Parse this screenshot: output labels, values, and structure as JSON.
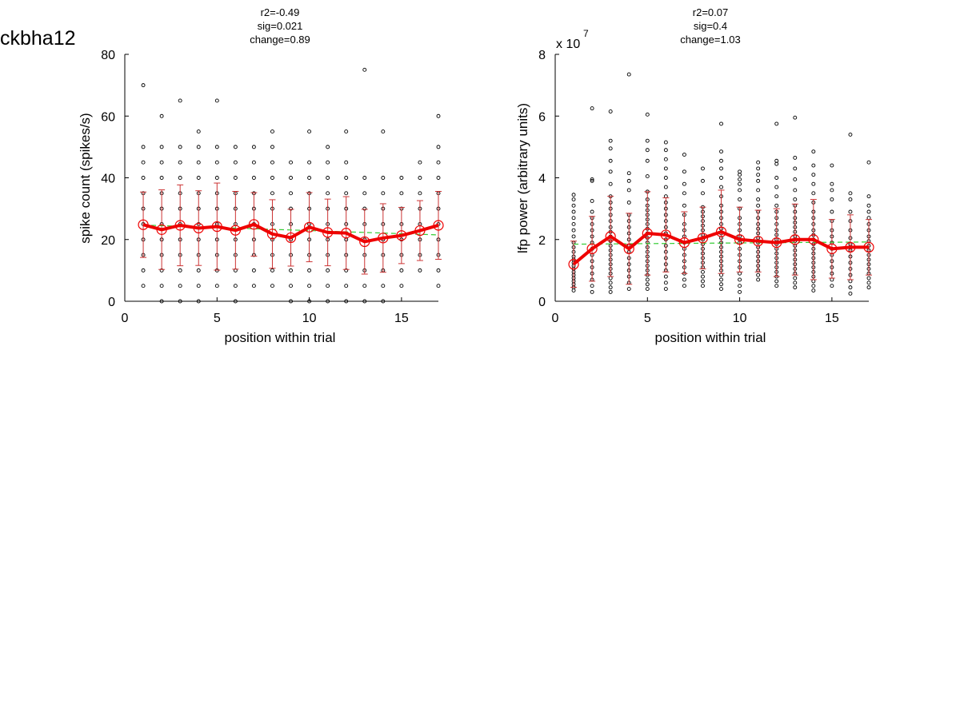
{
  "figure": {
    "title": "ckbha12"
  },
  "chart_data": [
    {
      "type": "scatter",
      "title_lines": [
        "r2=-0.49",
        "sig=0.021",
        "change=0.89"
      ],
      "xlabel": "position within trial",
      "ylabel": "spike count (spikes/s)",
      "xlim": [
        0,
        17
      ],
      "ylim": [
        0,
        80
      ],
      "xticks": [
        0,
        5,
        10,
        15
      ],
      "yticks": [
        0,
        20,
        40,
        60,
        80
      ],
      "multiplier": "",
      "grid": false,
      "colors": {
        "raw": "#000000",
        "mean": "#ee0000",
        "errorbar": "#cc3333",
        "fit": "#33cc33"
      },
      "raw_points": [
        {
          "x": 1,
          "y": [
            5,
            10,
            15,
            20,
            25,
            30,
            35,
            40,
            45,
            50,
            70
          ]
        },
        {
          "x": 2,
          "y": [
            0,
            5,
            10,
            15,
            20,
            25,
            30,
            35,
            40,
            45,
            50,
            60
          ]
        },
        {
          "x": 3,
          "y": [
            0,
            5,
            10,
            15,
            20,
            25,
            30,
            35,
            40,
            45,
            50,
            65
          ]
        },
        {
          "x": 4,
          "y": [
            0,
            5,
            10,
            15,
            20,
            25,
            30,
            35,
            40,
            45,
            50,
            55
          ]
        },
        {
          "x": 5,
          "y": [
            5,
            10,
            15,
            20,
            25,
            30,
            35,
            40,
            45,
            50,
            65
          ]
        },
        {
          "x": 6,
          "y": [
            0,
            5,
            10,
            15,
            20,
            25,
            30,
            35,
            40,
            45,
            50
          ]
        },
        {
          "x": 7,
          "y": [
            5,
            10,
            15,
            20,
            25,
            30,
            35,
            40,
            45,
            50
          ]
        },
        {
          "x": 8,
          "y": [
            5,
            10,
            15,
            20,
            25,
            30,
            35,
            40,
            45,
            50,
            55
          ]
        },
        {
          "x": 9,
          "y": [
            0,
            5,
            10,
            15,
            20,
            25,
            30,
            35,
            40,
            45
          ]
        },
        {
          "x": 10,
          "y": [
            0,
            5,
            10,
            15,
            20,
            25,
            30,
            35,
            40,
            45,
            55
          ]
        },
        {
          "x": 11,
          "y": [
            0,
            5,
            10,
            15,
            20,
            25,
            30,
            35,
            40,
            45,
            50
          ]
        },
        {
          "x": 12,
          "y": [
            0,
            5,
            10,
            15,
            20,
            25,
            30,
            35,
            40,
            45,
            55
          ]
        },
        {
          "x": 13,
          "y": [
            0,
            5,
            10,
            15,
            20,
            25,
            30,
            35,
            40,
            75
          ]
        },
        {
          "x": 14,
          "y": [
            0,
            5,
            10,
            15,
            20,
            25,
            30,
            35,
            40,
            55
          ]
        },
        {
          "x": 15,
          "y": [
            5,
            10,
            15,
            20,
            25,
            30,
            35,
            40
          ]
        },
        {
          "x": 16,
          "y": [
            10,
            15,
            20,
            25,
            30,
            35,
            40,
            45
          ]
        },
        {
          "x": 17,
          "y": [
            5,
            10,
            15,
            20,
            25,
            30,
            35,
            40,
            45,
            50,
            60
          ]
        }
      ],
      "series": [
        {
          "x": [
            1,
            2,
            3,
            4,
            5,
            6,
            7,
            8,
            9,
            10,
            11,
            12,
            13,
            14,
            15,
            16,
            17
          ],
          "mean": [
            24.8,
            23.2,
            24.6,
            23.7,
            24.2,
            23.0,
            24.9,
            21.8,
            20.6,
            24.0,
            22.3,
            22.1,
            19.3,
            20.5,
            21.3,
            22.9,
            24.6
          ],
          "sd": [
            10.6,
            12.9,
            13.1,
            12.1,
            14.1,
            12.6,
            10.3,
            11.1,
            9.2,
            11.2,
            10.8,
            11.8,
            10.5,
            11.1,
            9.1,
            9.7,
            11.0
          ]
        }
      ],
      "fit": {
        "x": [
          1,
          17
        ],
        "y": [
          24.7,
          21.5
        ]
      }
    },
    {
      "type": "scatter",
      "title_lines": [
        "r2=0.07",
        "sig=0.4",
        "change=1.03"
      ],
      "xlabel": "position within trial",
      "ylabel": "lfp power (arbitrary units)",
      "xlim": [
        0,
        17
      ],
      "ylim": [
        0,
        8
      ],
      "xticks": [
        0,
        5,
        10,
        15
      ],
      "yticks": [
        0,
        2,
        4,
        6,
        8
      ],
      "multiplier": "x 10",
      "multiplier_exp": "7",
      "grid": false,
      "colors": {
        "raw": "#000000",
        "mean": "#ee0000",
        "errorbar": "#cc3333",
        "fit": "#33cc33"
      },
      "raw_points": [
        {
          "x": 1,
          "y": [
            0.35,
            0.45,
            0.55,
            0.65,
            0.75,
            0.85,
            0.95,
            1.05,
            1.15,
            1.25,
            1.35,
            1.45,
            1.6,
            1.75,
            1.9,
            2.1,
            2.3,
            2.5,
            2.7,
            2.9,
            3.1,
            3.3,
            3.45
          ]
        },
        {
          "x": 2,
          "y": [
            0.3,
            0.5,
            0.7,
            0.9,
            1.1,
            1.3,
            1.5,
            1.7,
            1.9,
            2.1,
            2.3,
            2.5,
            2.7,
            2.9,
            3.25,
            3.9,
            3.95,
            6.25
          ]
        },
        {
          "x": 3,
          "y": [
            0.3,
            0.45,
            0.6,
            0.75,
            0.9,
            1.05,
            1.2,
            1.35,
            1.5,
            1.65,
            1.8,
            1.95,
            2.1,
            2.25,
            2.4,
            2.6,
            2.8,
            3.0,
            3.2,
            3.4,
            3.8,
            4.2,
            4.55,
            4.95,
            5.2,
            6.15
          ]
        },
        {
          "x": 4,
          "y": [
            0.4,
            0.6,
            0.8,
            1.0,
            1.2,
            1.4,
            1.6,
            1.8,
            2.0,
            2.2,
            2.4,
            2.6,
            2.8,
            3.2,
            3.6,
            3.9,
            4.15,
            7.35
          ]
        },
        {
          "x": 5,
          "y": [
            0.4,
            0.55,
            0.7,
            0.85,
            1.0,
            1.15,
            1.3,
            1.45,
            1.6,
            1.75,
            1.9,
            2.05,
            2.2,
            2.35,
            2.5,
            2.65,
            2.8,
            2.95,
            3.1,
            3.3,
            3.55,
            4.05,
            4.55,
            4.9,
            5.2,
            6.05
          ]
        },
        {
          "x": 6,
          "y": [
            0.4,
            0.6,
            0.8,
            1.0,
            1.2,
            1.4,
            1.6,
            1.8,
            2.0,
            2.2,
            2.4,
            2.6,
            2.8,
            3.0,
            3.2,
            3.4,
            3.7,
            4.0,
            4.3,
            4.6,
            4.9,
            5.15
          ]
        },
        {
          "x": 7,
          "y": [
            0.5,
            0.7,
            0.9,
            1.1,
            1.3,
            1.5,
            1.7,
            1.9,
            2.1,
            2.3,
            2.5,
            2.8,
            3.1,
            3.5,
            3.8,
            4.2,
            4.75
          ]
        },
        {
          "x": 8,
          "y": [
            0.5,
            0.65,
            0.8,
            0.95,
            1.1,
            1.25,
            1.4,
            1.55,
            1.7,
            1.85,
            2.0,
            2.15,
            2.3,
            2.45,
            2.6,
            2.75,
            2.9,
            3.05,
            3.5,
            3.9,
            4.3
          ]
        },
        {
          "x": 9,
          "y": [
            0.4,
            0.55,
            0.7,
            0.85,
            1.0,
            1.15,
            1.3,
            1.45,
            1.6,
            1.75,
            1.9,
            2.05,
            2.2,
            2.35,
            2.5,
            2.7,
            2.9,
            3.1,
            3.4,
            3.7,
            4.0,
            4.3,
            4.55,
            4.85,
            5.75
          ]
        },
        {
          "x": 10,
          "y": [
            0.3,
            0.5,
            0.7,
            0.9,
            1.1,
            1.3,
            1.5,
            1.7,
            1.9,
            2.1,
            2.3,
            2.5,
            2.7,
            3.0,
            3.3,
            3.6,
            3.8,
            3.95,
            4.1,
            4.2
          ]
        },
        {
          "x": 11,
          "y": [
            0.7,
            0.85,
            1.0,
            1.15,
            1.3,
            1.45,
            1.6,
            1.75,
            1.9,
            2.05,
            2.2,
            2.35,
            2.5,
            2.7,
            2.9,
            3.1,
            3.3,
            3.6,
            3.9,
            4.1,
            4.3,
            4.5
          ]
        },
        {
          "x": 12,
          "y": [
            0.5,
            0.65,
            0.8,
            0.95,
            1.1,
            1.25,
            1.4,
            1.55,
            1.7,
            1.85,
            2.0,
            2.15,
            2.3,
            2.5,
            2.7,
            2.9,
            3.1,
            3.4,
            3.7,
            4.0,
            4.45,
            4.55,
            5.75
          ]
        },
        {
          "x": 13,
          "y": [
            0.45,
            0.6,
            0.75,
            0.9,
            1.05,
            1.2,
            1.35,
            1.5,
            1.65,
            1.8,
            1.95,
            2.1,
            2.25,
            2.4,
            2.55,
            2.7,
            2.9,
            3.1,
            3.3,
            3.6,
            3.95,
            4.3,
            4.65,
            5.95
          ]
        },
        {
          "x": 14,
          "y": [
            0.35,
            0.5,
            0.65,
            0.8,
            0.95,
            1.1,
            1.25,
            1.4,
            1.55,
            1.7,
            1.85,
            2.0,
            2.15,
            2.3,
            2.5,
            2.7,
            2.9,
            3.2,
            3.5,
            3.8,
            4.1,
            4.4,
            4.85
          ]
        },
        {
          "x": 15,
          "y": [
            0.5,
            0.7,
            0.9,
            1.1,
            1.3,
            1.5,
            1.7,
            1.9,
            2.1,
            2.3,
            2.6,
            2.9,
            3.3,
            3.6,
            3.8,
            4.4
          ]
        },
        {
          "x": 16,
          "y": [
            0.25,
            0.45,
            0.65,
            0.85,
            1.05,
            1.25,
            1.45,
            1.65,
            1.85,
            2.05,
            2.3,
            2.6,
            2.9,
            3.3,
            3.5,
            5.4
          ]
        },
        {
          "x": 17,
          "y": [
            0.45,
            0.6,
            0.75,
            0.9,
            1.05,
            1.2,
            1.35,
            1.5,
            1.65,
            1.8,
            1.95,
            2.1,
            2.3,
            2.5,
            2.7,
            2.9,
            3.1,
            3.4,
            4.5
          ]
        }
      ],
      "series": [
        {
          "x": [
            1,
            2,
            3,
            4,
            5,
            6,
            7,
            8,
            9,
            10,
            11,
            12,
            13,
            14,
            15,
            16,
            17
          ],
          "mean": [
            1.2,
            1.7,
            2.1,
            1.7,
            2.2,
            2.15,
            1.9,
            2.05,
            2.25,
            2.0,
            1.95,
            1.9,
            2.0,
            2.0,
            1.7,
            1.75,
            1.75
          ],
          "sd": [
            0.75,
            1.05,
            1.3,
            1.15,
            1.35,
            1.2,
            1.0,
            1.0,
            1.35,
            1.05,
            1.0,
            1.1,
            1.15,
            1.3,
            0.95,
            1.05,
            0.9
          ]
        }
      ],
      "fit": {
        "x": [
          1,
          17
        ],
        "y": [
          1.85,
          1.92
        ]
      }
    }
  ]
}
